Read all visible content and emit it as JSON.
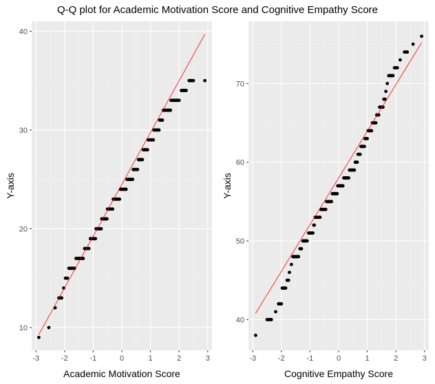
{
  "title": "Q-Q plot for Academic Motivation Score and Cognitive Empathy Score",
  "chart_data": [
    {
      "type": "scatter",
      "subtype": "qq-plot",
      "xlabel": "Academic Motivation Score",
      "ylabel": "Y-axis",
      "xlim": [
        -3.15,
        3.15
      ],
      "ylim": [
        7.7,
        41.0
      ],
      "xticks": [
        -3,
        -2,
        -1,
        0,
        1,
        2,
        3
      ],
      "yticks": [
        10,
        20,
        30,
        40
      ],
      "grid": true,
      "reference_line": {
        "x": [
          -2.9,
          2.9
        ],
        "y": [
          9.3,
          39.7
        ],
        "color": "#ff0000"
      },
      "steps": [
        {
          "y": 9,
          "x0": -2.9,
          "x1": -2.9
        },
        {
          "y": 10,
          "x0": -2.55,
          "x1": -2.55
        },
        {
          "y": 12,
          "x0": -2.33,
          "x1": -2.33
        },
        {
          "y": 13,
          "x0": -2.2,
          "x1": -2.1
        },
        {
          "y": 14,
          "x0": -2.03,
          "x1": -2.03
        },
        {
          "y": 15,
          "x0": -1.97,
          "x1": -1.9
        },
        {
          "y": 16,
          "x0": -1.85,
          "x1": -1.65
        },
        {
          "y": 17,
          "x0": -1.6,
          "x1": -1.35
        },
        {
          "y": 18,
          "x0": -1.3,
          "x1": -1.15
        },
        {
          "y": 19,
          "x0": -1.1,
          "x1": -0.92
        },
        {
          "y": 20,
          "x0": -0.9,
          "x1": -0.72
        },
        {
          "y": 21,
          "x0": -0.7,
          "x1": -0.52
        },
        {
          "y": 22,
          "x0": -0.5,
          "x1": -0.32
        },
        {
          "y": 23,
          "x0": -0.3,
          "x1": -0.08
        },
        {
          "y": 24,
          "x0": -0.05,
          "x1": 0.15
        },
        {
          "y": 25,
          "x0": 0.18,
          "x1": 0.38
        },
        {
          "y": 26,
          "x0": 0.4,
          "x1": 0.55
        },
        {
          "y": 27,
          "x0": 0.58,
          "x1": 0.72
        },
        {
          "y": 28,
          "x0": 0.75,
          "x1": 0.9
        },
        {
          "y": 29,
          "x0": 0.92,
          "x1": 1.1
        },
        {
          "y": 30,
          "x0": 1.12,
          "x1": 1.3
        },
        {
          "y": 31,
          "x0": 1.32,
          "x1": 1.42
        },
        {
          "y": 32,
          "x0": 1.45,
          "x1": 1.7
        },
        {
          "y": 33,
          "x0": 1.72,
          "x1": 2.0
        },
        {
          "y": 34,
          "x0": 2.08,
          "x1": 2.25
        },
        {
          "y": 35,
          "x0": 2.35,
          "x1": 2.5
        },
        {
          "y": 35,
          "x0": 2.9,
          "x1": 2.9
        }
      ]
    },
    {
      "type": "scatter",
      "subtype": "qq-plot",
      "xlabel": "Cognitive Empathy Score",
      "ylabel": "Y-axis",
      "xlim": [
        -3.15,
        3.15
      ],
      "ylim": [
        36.1,
        77.9
      ],
      "xticks": [
        -3,
        -2,
        -1,
        0,
        1,
        2,
        3
      ],
      "yticks": [
        40,
        50,
        60,
        70
      ],
      "grid": true,
      "reference_line": {
        "x": [
          -2.9,
          2.9
        ],
        "y": [
          40.8,
          75.2
        ],
        "color": "#ff0000"
      },
      "steps": [
        {
          "y": 38,
          "x0": -2.9,
          "x1": -2.9
        },
        {
          "y": 40,
          "x0": -2.5,
          "x1": -2.35
        },
        {
          "y": 41,
          "x0": -2.2,
          "x1": -2.2
        },
        {
          "y": 42,
          "x0": -2.1,
          "x1": -2.0
        },
        {
          "y": 44,
          "x0": -1.97,
          "x1": -1.85
        },
        {
          "y": 45,
          "x0": -1.8,
          "x1": -1.75
        },
        {
          "y": 46,
          "x0": -1.72,
          "x1": -1.72
        },
        {
          "y": 47,
          "x0": -1.65,
          "x1": -1.65
        },
        {
          "y": 48,
          "x0": -1.6,
          "x1": -1.4
        },
        {
          "y": 49,
          "x0": -1.35,
          "x1": -1.3
        },
        {
          "y": 50,
          "x0": -1.25,
          "x1": -1.1
        },
        {
          "y": 51,
          "x0": -1.05,
          "x1": -0.9
        },
        {
          "y": 52,
          "x0": -0.87,
          "x1": -0.85
        },
        {
          "y": 53,
          "x0": -0.82,
          "x1": -0.65
        },
        {
          "y": 54,
          "x0": -0.62,
          "x1": -0.45
        },
        {
          "y": 55,
          "x0": -0.42,
          "x1": -0.25
        },
        {
          "y": 56,
          "x0": -0.22,
          "x1": -0.05
        },
        {
          "y": 57,
          "x0": -0.03,
          "x1": 0.15
        },
        {
          "y": 58,
          "x0": 0.18,
          "x1": 0.35
        },
        {
          "y": 59,
          "x0": 0.38,
          "x1": 0.55
        },
        {
          "y": 60,
          "x0": 0.58,
          "x1": 0.65
        },
        {
          "y": 61,
          "x0": 0.68,
          "x1": 0.75
        },
        {
          "y": 62,
          "x0": 0.78,
          "x1": 0.9
        },
        {
          "y": 63,
          "x0": 0.92,
          "x1": 1.0
        },
        {
          "y": 64,
          "x0": 1.03,
          "x1": 1.15
        },
        {
          "y": 65,
          "x0": 1.18,
          "x1": 1.3
        },
        {
          "y": 66,
          "x0": 1.33,
          "x1": 1.4
        },
        {
          "y": 67,
          "x0": 1.43,
          "x1": 1.55
        },
        {
          "y": 68,
          "x0": 1.58,
          "x1": 1.62
        },
        {
          "y": 69,
          "x0": 1.65,
          "x1": 1.65
        },
        {
          "y": 70,
          "x0": 1.7,
          "x1": 1.7
        },
        {
          "y": 71,
          "x0": 1.75,
          "x1": 1.9
        },
        {
          "y": 72,
          "x0": 1.95,
          "x1": 2.05
        },
        {
          "y": 73,
          "x0": 2.15,
          "x1": 2.15
        },
        {
          "y": 74,
          "x0": 2.3,
          "x1": 2.4
        },
        {
          "y": 75,
          "x0": 2.6,
          "x1": 2.6
        },
        {
          "y": 76,
          "x0": 2.9,
          "x1": 2.9
        }
      ]
    }
  ],
  "colors": {
    "panel_bg": "#ebebeb",
    "grid_major": "#ffffff",
    "grid_minor": "#f3f3f3",
    "point": "#000000",
    "line": "#ff0000",
    "tick_text": "#4d4d4d"
  }
}
